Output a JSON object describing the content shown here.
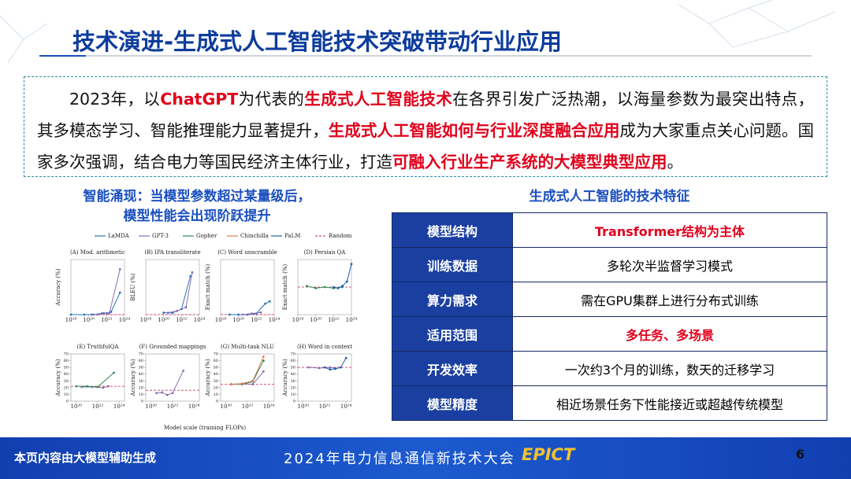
{
  "header": {
    "title": "技术演进-生成式人工智能技术突破带动行业应用"
  },
  "intro": {
    "segments": [
      {
        "text": "2023年，以",
        "highlight": false
      },
      {
        "text": "ChatGPT",
        "highlight": true
      },
      {
        "text": "为代表的",
        "highlight": false
      },
      {
        "text": "生成式人工智能技术",
        "highlight": true
      },
      {
        "text": "在各界引发广泛热潮，以海量参数为最突出特点，其多模态学习、智能推理能力显著提升，",
        "highlight": false
      },
      {
        "text": "生成式人工智能如何与行业深度融合应用",
        "highlight": true
      },
      {
        "text": "成为大家重点关心问题。国家多次强调，结合电力等国民经济主体行业，打造",
        "highlight": false
      },
      {
        "text": "可融入行业生产系统的大模型典型应用",
        "highlight": true
      },
      {
        "text": "。",
        "highlight": false
      }
    ]
  },
  "figure": {
    "heading": [
      "智能涌现：当模型参数超过某量级后，",
      "模型性能会出现阶跃提升"
    ],
    "legend": [
      {
        "name": "LaMDA",
        "color": "#1f77b4",
        "dashed": false
      },
      {
        "name": "GPT-3",
        "color": "#8c6bb1",
        "dashed": false
      },
      {
        "name": "Gopher",
        "color": "#2e8b57",
        "dashed": false
      },
      {
        "name": "Chinchilla",
        "color": "#e07b5a",
        "dashed": false
      },
      {
        "name": "PaLM",
        "color": "#1f5fa8",
        "dashed": false
      },
      {
        "name": "Random",
        "color": "#e0507a",
        "dashed": true
      }
    ],
    "xlabel": "Model scale (training FLOPs)",
    "panels": [
      {
        "title": "(A) Mod. arithmetic",
        "ylabel": "Accuracy (%)",
        "ylim": [
          0,
          40
        ],
        "xlim": [
          18,
          24
        ],
        "xticks": [
          {
            "value": 18,
            "label": "10¹⁸"
          },
          {
            "value": 20,
            "label": "10²⁰"
          },
          {
            "value": 22,
            "label": "10²²"
          },
          {
            "value": 24,
            "label": "10²⁴"
          }
        ],
        "random": 0,
        "series": [
          {
            "name": "LaMDA",
            "x": [
              18,
              19.5,
              20.5,
              21.5,
              22,
              22.5,
              23.5
            ],
            "values": [
              0,
              0,
              0,
              1,
              1,
              2,
              16
            ]
          },
          {
            "name": "GPT-3",
            "x": [
              20.3,
              21,
              21.7,
              22.3,
              23.5
            ],
            "values": [
              0,
              0,
              1,
              1,
              33
            ]
          }
        ]
      },
      {
        "title": "(B) IPA transliterate",
        "ylabel": "BLEU (%)",
        "ylim": [
          0,
          30
        ],
        "xlim": [
          18,
          24
        ],
        "xticks": [
          {
            "value": 18,
            "label": "10¹⁸"
          },
          {
            "value": 20,
            "label": "10²⁰"
          },
          {
            "value": 22,
            "label": "10²²"
          },
          {
            "value": 24,
            "label": "10²⁴"
          }
        ],
        "random": 0,
        "series": [
          {
            "name": "LaMDA",
            "x": [
              20,
              21,
              22,
              23
            ],
            "values": [
              1,
              1,
              3,
              21
            ]
          },
          {
            "name": "GPT-3",
            "x": [
              20.5,
              21.5,
              22.5,
              23.2
            ],
            "values": [
              1,
              2,
              4,
              23
            ]
          }
        ]
      },
      {
        "title": "(C) Word unscramble",
        "ylabel": "Exact match (%)",
        "ylim": [
          0,
          50
        ],
        "xlim": [
          18,
          24
        ],
        "xticks": [
          {
            "value": 18,
            "label": "10¹⁸"
          },
          {
            "value": 20,
            "label": "10²⁰"
          },
          {
            "value": 22,
            "label": "10²²"
          },
          {
            "value": 24,
            "label": "10²⁴"
          }
        ],
        "random": 0,
        "series": [
          {
            "name": "LaMDA",
            "x": [
              19,
              20,
              21,
              22,
              23,
              23.5
            ],
            "values": [
              0,
              0,
              0,
              1,
              10,
              12
            ]
          },
          {
            "name": "GPT-3",
            "x": [
              20.5,
              21.5,
              22.5
            ],
            "values": [
              0,
              1,
              2
            ]
          }
        ]
      },
      {
        "title": "(D) Persian QA",
        "ylabel": "Exact match (%)",
        "ylim": [
          0,
          50
        ],
        "xlim": [
          18,
          24
        ],
        "xticks": [
          {
            "value": 18,
            "label": "10¹⁸"
          },
          {
            "value": 20,
            "label": "10²⁰"
          },
          {
            "value": 22,
            "label": "10²²"
          },
          {
            "value": 24,
            "label": "10²⁴"
          }
        ],
        "random": 25,
        "series": [
          {
            "name": "Gopher",
            "x": [
              19,
              20,
              21,
              22,
              23
            ],
            "values": [
              26,
              24,
              25,
              24,
              25
            ]
          },
          {
            "name": "PaLM",
            "x": [
              22,
              22.5,
              23,
              23.5,
              24
            ],
            "values": [
              25,
              24,
              26,
              30,
              46
            ]
          }
        ]
      },
      {
        "title": "(E) TruthfulQA",
        "ylabel": "Accuracy (%)",
        "ylim": [
          0,
          70
        ],
        "yticks": [
          0,
          10,
          20,
          30,
          40,
          50,
          60,
          70
        ],
        "xlim": [
          19.5,
          24.5
        ],
        "xticks": [
          {
            "value": 20,
            "label": "10²⁰"
          },
          {
            "value": 22,
            "label": "10²²"
          },
          {
            "value": 24,
            "label": "10²⁴"
          }
        ],
        "random": 22,
        "series": [
          {
            "name": "GPT-3",
            "x": [
              20.5,
              21.5,
              22.5,
              23
            ],
            "values": [
              21,
              21,
              20,
              22
            ]
          },
          {
            "name": "Gopher",
            "x": [
              20,
              21,
              22,
              23.5
            ],
            "values": [
              22,
              22,
              21,
              42
            ]
          }
        ]
      },
      {
        "title": "(F) Grounded mappings",
        "ylabel": "Accuracy (%)",
        "ylim": [
          0,
          70
        ],
        "yticks": [
          0,
          10,
          20,
          30,
          40,
          50,
          60,
          70
        ],
        "xlim": [
          19.5,
          24.5
        ],
        "xticks": [
          {
            "value": 20,
            "label": "10²⁰"
          },
          {
            "value": 22,
            "label": "10²²"
          },
          {
            "value": 24,
            "label": "10²⁴"
          }
        ],
        "random": 16,
        "series": [
          {
            "name": "GPT-3",
            "x": [
              20.5,
              21,
              21.5,
              22,
              23
            ],
            "values": [
              12,
              13,
              9,
              12,
              45
            ]
          }
        ]
      },
      {
        "title": "(G) Multi-task NLU",
        "ylabel": "Accuracy (%)",
        "ylim": [
          0,
          70
        ],
        "yticks": [
          0,
          10,
          20,
          30,
          40,
          50,
          60,
          70
        ],
        "xlim": [
          19.5,
          24.5
        ],
        "xticks": [
          {
            "value": 20,
            "label": "10²⁰"
          },
          {
            "value": 22,
            "label": "10²²"
          },
          {
            "value": 24,
            "label": "10²⁴"
          }
        ],
        "random": 25,
        "series": [
          {
            "name": "GPT-3",
            "x": [
              20.5,
              21.5,
              22.5,
              23.5
            ],
            "values": [
              25,
              26,
              25,
              44
            ]
          },
          {
            "name": "Gopher",
            "x": [
              20.5,
              21.5,
              22.5,
              23.5
            ],
            "values": [
              25,
              25,
              29,
              60
            ]
          },
          {
            "name": "Chinchilla",
            "x": [
              20.5,
              21.5,
              22.5,
              23.5
            ],
            "values": [
              25,
              26,
              30,
              66
            ]
          }
        ]
      },
      {
        "title": "(H) Word in context",
        "ylabel": "Accuracy (%)",
        "ylim": [
          0,
          70
        ],
        "yticks": [
          0,
          10,
          20,
          30,
          40,
          50,
          60,
          70
        ],
        "xlim": [
          19.5,
          24.5
        ],
        "xticks": [
          {
            "value": 20,
            "label": "10²⁰"
          },
          {
            "value": 22,
            "label": "10²²"
          },
          {
            "value": 24,
            "label": "10²⁴"
          }
        ],
        "random": 50,
        "series": [
          {
            "name": "GPT-3",
            "x": [
              20.5,
              21.5,
              22.5,
              23
            ],
            "values": [
              50,
              49,
              50,
              49
            ]
          },
          {
            "name": "PaLM",
            "x": [
              22,
              22.5,
              23,
              23.5,
              24
            ],
            "values": [
              50,
              47,
              48,
              50,
              64
            ]
          }
        ]
      }
    ]
  },
  "table": {
    "title": "生成式人工智能的技术特征",
    "rows": [
      {
        "label": "模型结构",
        "value": "Transformer结构为主体",
        "highlight": true
      },
      {
        "label": "训练数据",
        "value": "多轮次半监督学习模式",
        "highlight": false
      },
      {
        "label": "算力需求",
        "value": "需在GPU集群上进行分布式训练",
        "highlight": false
      },
      {
        "label": "适用范围",
        "value": "多任务、多场景",
        "highlight": true
      },
      {
        "label": "开发效率",
        "value": "一次约3个月的训练，数天的迁移学习",
        "highlight": false
      },
      {
        "label": "模型精度",
        "value": "相近场景任务下性能接近或超越传统模型",
        "highlight": false
      }
    ]
  },
  "footer": {
    "note": "本页内容由大模型辅助生成",
    "conference": "2024年电力信息通信新技术大会",
    "logo": "EPICT",
    "page": 6
  }
}
